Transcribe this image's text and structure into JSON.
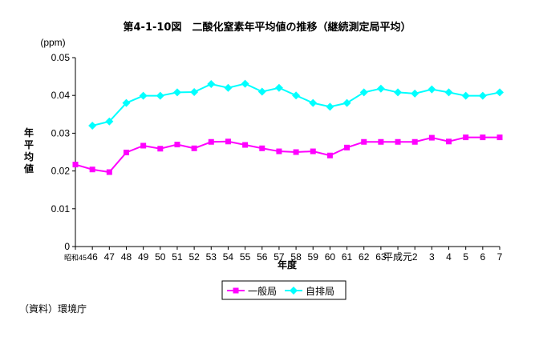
{
  "chart_data": {
    "type": "line",
    "title": "第4-1-10図　二酸化窒素年平均値の推移（継続測定局平均）",
    "unit_label": "(ppm)",
    "ylabel": "年平均値",
    "xlabel": "年度",
    "ylim": [
      0,
      0.05
    ],
    "y_ticks": [
      "0",
      "0.01",
      "0.02",
      "0.03",
      "0.04",
      "0.05"
    ],
    "categories": [
      "昭和45",
      "46",
      "47",
      "48",
      "49",
      "50",
      "51",
      "52",
      "53",
      "54",
      "55",
      "56",
      "57",
      "58",
      "59",
      "60",
      "61",
      "62",
      "63",
      "平成元",
      "2",
      "3",
      "4",
      "5",
      "6",
      "7"
    ],
    "x_tick_labels": [
      "昭和45",
      "46",
      "47",
      "48",
      "49",
      "50",
      "51",
      "52",
      "53",
      "54",
      "55",
      "56",
      "57",
      "58",
      "59",
      "60",
      "61",
      "62",
      "63",
      "平成元",
      "2",
      "3",
      "4",
      "5",
      "6",
      "7"
    ],
    "grid": false,
    "legend_position": "bottom",
    "series": [
      {
        "name": "一般局",
        "color": "#ff00ff",
        "marker": "square",
        "values": [
          0.0217,
          0.0204,
          0.0197,
          0.0249,
          0.0267,
          0.0259,
          0.027,
          0.026,
          0.0277,
          0.0278,
          0.0269,
          0.026,
          0.0252,
          0.025,
          0.0252,
          0.0241,
          0.0262,
          0.0277,
          0.0277,
          0.0277,
          0.0277,
          0.0288,
          0.0278,
          0.0289,
          0.0289,
          0.0289
        ]
      },
      {
        "name": "自排局",
        "color": "#00ffff",
        "marker": "diamond",
        "values": [
          null,
          0.032,
          0.0331,
          0.038,
          0.0399,
          0.0399,
          0.0408,
          0.0409,
          0.043,
          0.042,
          0.0431,
          0.041,
          0.042,
          0.04,
          0.038,
          0.037,
          0.038,
          0.0408,
          0.0418,
          0.0408,
          0.0405,
          0.0416,
          0.0408,
          0.0399,
          0.0399,
          0.0408
        ]
      }
    ]
  },
  "source_note": "（資料）環境庁"
}
